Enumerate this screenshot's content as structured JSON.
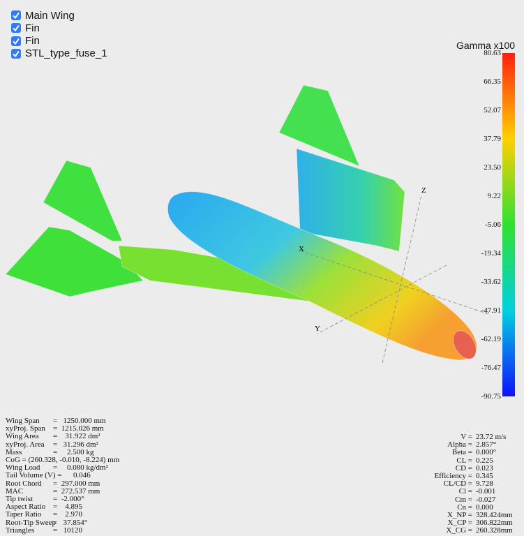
{
  "objects": [
    "Main Wing",
    "Fin",
    "Fin",
    "STL_type_fuse_1"
  ],
  "colorbar": {
    "title": "Gamma x100",
    "ticks": [
      "80.63",
      "66.35",
      "52.07",
      "37.79",
      "23.50",
      "9.22",
      "-5.06",
      "-19.34",
      "-33.62",
      "-47.91",
      "-62.19",
      "-76.47",
      "-90.75"
    ]
  },
  "axes": {
    "x": "X",
    "y": "Y",
    "z": "Z"
  },
  "left_info": [
    {
      "label": "Wing Span",
      "value": "=   1250.000 mm"
    },
    {
      "label": "xyProj. Span",
      "value": "=  1215.026 mm"
    },
    {
      "label": "Wing Area",
      "value": "=    31.922 dm²"
    },
    {
      "label": "xyProj. Area",
      "value": "=   31.296 dm²"
    },
    {
      "label": "Mass",
      "value": "=     2.500 kg"
    },
    {
      "label": "CoG = (260.328, -0.010, -8.224) mm",
      "value": ""
    },
    {
      "label": "Wing Load",
      "value": "=     0.080 kg/dm²"
    },
    {
      "label": "Tail Volume (V) =",
      "value": "0.046"
    },
    {
      "label": "Root Chord",
      "value": "=  297.000 mm"
    },
    {
      "label": "MAC",
      "value": "=  272.537 mm"
    },
    {
      "label": "Tip twist",
      "value": "=  -2.000°"
    },
    {
      "label": "Aspect Ratio",
      "value": "=    4.895"
    },
    {
      "label": "Taper Ratio",
      "value": "=    2.970"
    },
    {
      "label": "Root-Tip Sweep",
      "value": "=   37.854°"
    },
    {
      "label": "Triangles",
      "value": "=   10120"
    }
  ],
  "right_info": [
    {
      "label": "V =",
      "value": "23.72 m/s"
    },
    {
      "label": "Alpha =",
      "value": "2.857°"
    },
    {
      "label": "Beta =",
      "value": "0.000°"
    },
    {
      "label": "CL =",
      "value": "0.225"
    },
    {
      "label": "CD =",
      "value": "0.023"
    },
    {
      "label": "Efficiency =",
      "value": "0.345"
    },
    {
      "label": "CL/CD =",
      "value": "9.728"
    },
    {
      "label": "Cl =",
      "value": "-0.001"
    },
    {
      "label": "Cm =",
      "value": "-0.027"
    },
    {
      "label": "Cn =",
      "value": "0.000"
    },
    {
      "label": "X_NP =",
      "value": "328.424mm"
    },
    {
      "label": "X_CP =",
      "value": "306.822mm"
    },
    {
      "label": "X_CG =",
      "value": "260.328mm"
    }
  ]
}
